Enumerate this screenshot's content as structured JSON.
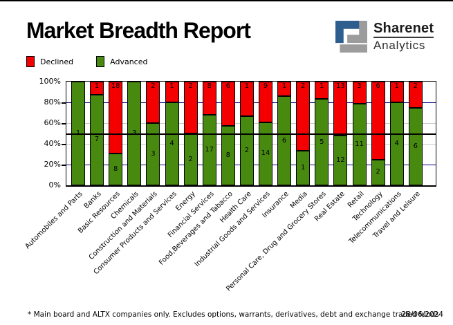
{
  "header": {
    "title": "Market Breadth Report",
    "brand": {
      "name": "Sharenet",
      "tagline": "Analytics",
      "blue": "#2e5e8e",
      "gray": "#9c9c9c"
    }
  },
  "legend": [
    {
      "label": "Declined",
      "color": "#f40000"
    },
    {
      "label": "Advanced",
      "color": "#488a10"
    }
  ],
  "chart_data": {
    "type": "bar",
    "stacked": true,
    "units": "percent of companies (segment labels show counts)",
    "categories": [
      "Automobiles and Parts",
      "Banks",
      "Basic Resources",
      "Chemicals",
      "Construction and Materials",
      "Consumer Products and Services",
      "Energy",
      "Financial Services",
      "Food,Beverages and Tabacco",
      "Health Care",
      "Industrial Goods and Services",
      "Insurance",
      "Media",
      "Personal Care, Drug and Grocery Stores",
      "Real Estate",
      "Retail",
      "Technology",
      "Telecommunications",
      "Travel and Leisure"
    ],
    "series": [
      {
        "name": "Declined",
        "color": "#f40000",
        "values": [
          0,
          1,
          18,
          0,
          2,
          1,
          2,
          8,
          6,
          1,
          9,
          1,
          2,
          1,
          13,
          3,
          6,
          1,
          2
        ]
      },
      {
        "name": "Advanced",
        "color": "#488a10",
        "values": [
          1,
          7,
          8,
          3,
          3,
          4,
          2,
          17,
          8,
          2,
          14,
          6,
          1,
          5,
          12,
          11,
          2,
          4,
          6
        ]
      }
    ],
    "y_ticks": [
      "100%",
      "80%",
      "60%",
      "40%",
      "20%",
      "0%"
    ],
    "ylim": [
      0,
      100
    ],
    "legend_position": "top-left",
    "gridlines": [
      {
        "percent": 80,
        "color": "#000080",
        "thickness": 1,
        "overlay": false
      },
      {
        "percent": 60,
        "color": "#c8c8c8",
        "thickness": 1,
        "overlay": false
      },
      {
        "percent": 50,
        "color": "#000000",
        "thickness": 2,
        "overlay": true
      },
      {
        "percent": 40,
        "color": "#c8c8c8",
        "thickness": 1,
        "overlay": false
      },
      {
        "percent": 20,
        "color": "#000080",
        "thickness": 1,
        "overlay": false
      }
    ]
  },
  "footer": {
    "note": "* Main board and ALTX companies only. Excludes options, warrants, derivatives, debt and exchange traded funds",
    "date": "28/06/2024"
  }
}
